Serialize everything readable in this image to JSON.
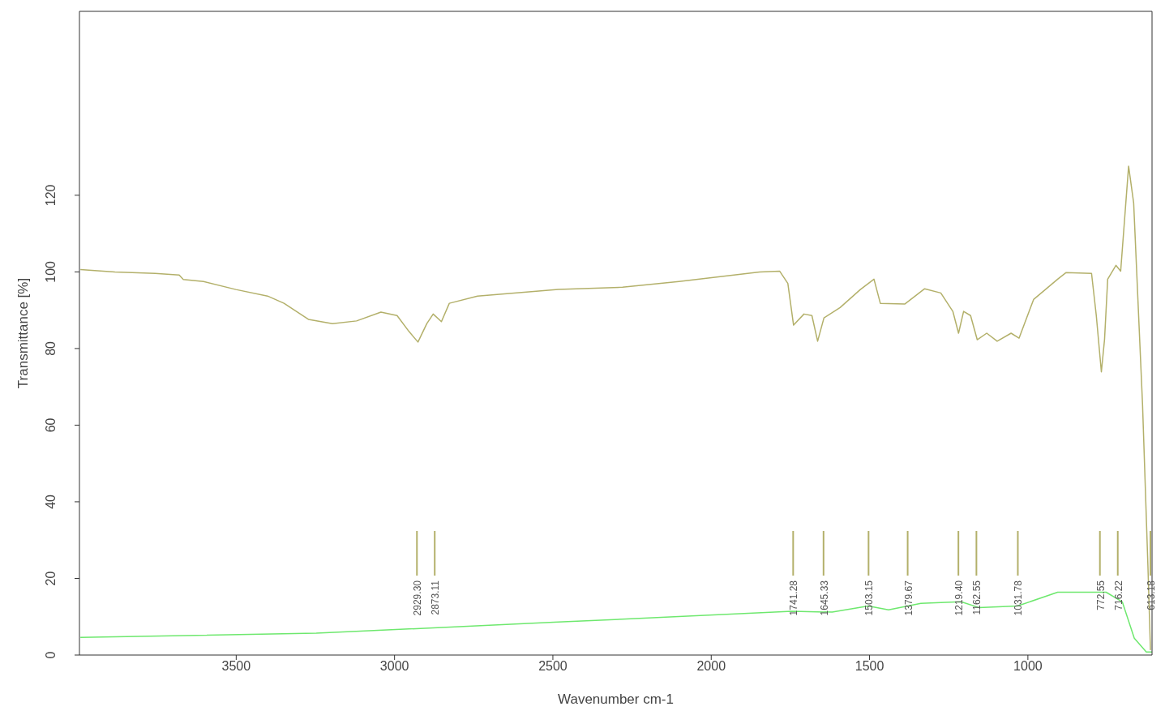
{
  "chart_data": {
    "type": "line",
    "xlabel": "Wavenumber cm-1",
    "ylabel": "Transmittance [%]",
    "xlim": [
      3995,
      608
    ],
    "xticks": [
      3500,
      3000,
      2500,
      2000,
      1500,
      1000
    ],
    "ylim": [
      0,
      168
    ],
    "yticks": [
      0,
      20,
      40,
      60,
      80,
      100,
      120
    ],
    "grid": false,
    "marker": "none",
    "line_style": "solid",
    "series": [
      {
        "color": "#b3b06a",
        "x": [
          3992,
          3883,
          3756,
          3680,
          3667,
          3603,
          3501,
          3401,
          3349,
          3272,
          3196,
          3120,
          3043,
          2992,
          2954,
          2926,
          2898,
          2878,
          2852,
          2827,
          2738,
          2483,
          2280,
          2102,
          1847,
          1784,
          1758,
          1740,
          1707,
          1682,
          1664,
          1644,
          1593,
          1529,
          1486,
          1466,
          1389,
          1326,
          1275,
          1237,
          1219,
          1203,
          1181,
          1160,
          1130,
          1097,
          1053,
          1028,
          982,
          906,
          880,
          799,
          784,
          768,
          758,
          748,
          722,
          707,
          682,
          666,
          638,
          621,
          613
        ],
        "values": [
          100.6,
          100,
          99.6,
          99.2,
          98,
          97.5,
          95.4,
          93.7,
          91.8,
          87.6,
          86.5,
          87.2,
          89.5,
          88.6,
          84.4,
          81.7,
          86.5,
          89,
          87,
          91.8,
          93.7,
          95.4,
          96,
          97.5,
          100,
          100.2,
          97,
          86.1,
          89,
          88.6,
          81.9,
          88,
          90.7,
          95.4,
          98.1,
          91.8,
          91.6,
          95.6,
          94.5,
          89.7,
          84,
          89.7,
          88.6,
          82.3,
          84,
          81.9,
          84,
          82.7,
          92.8,
          98.1,
          99.8,
          99.6,
          88.6,
          73.9,
          82.3,
          98.1,
          101.7,
          100.2,
          127.6,
          118,
          65.5,
          23.4,
          1.3
        ]
      },
      {
        "color": "#6ee86e",
        "x": [
          3992,
          3247,
          2483,
          1745,
          1618,
          1504,
          1440,
          1338,
          1211,
          1155,
          1033,
          906,
          753,
          702,
          664,
          626,
          608
        ],
        "values": [
          4.6,
          5.7,
          8.6,
          11.4,
          11.2,
          12.8,
          11.8,
          13.5,
          13.9,
          12.4,
          12.8,
          16.4,
          16.4,
          13.9,
          4.4,
          0.8,
          0.8
        ]
      }
    ],
    "ref_lines": [
      {
        "axis": "x",
        "value": 2929.3,
        "label": "2929.30"
      },
      {
        "axis": "x",
        "value": 2873.11,
        "label": "2873.11"
      },
      {
        "axis": "x",
        "value": 1741.28,
        "label": "1741.28"
      },
      {
        "axis": "x",
        "value": 1645.33,
        "label": "1645.33"
      },
      {
        "axis": "x",
        "value": 1503.15,
        "label": "1503.15"
      },
      {
        "axis": "x",
        "value": 1379.67,
        "label": "1379.67"
      },
      {
        "axis": "x",
        "value": 1219.4,
        "label": "1219.40"
      },
      {
        "axis": "x",
        "value": 1162.55,
        "label": "1162.55"
      },
      {
        "axis": "x",
        "value": 1031.78,
        "label": "1031.78"
      },
      {
        "axis": "x",
        "value": 772.55,
        "label": "772.55"
      },
      {
        "axis": "x",
        "value": 716.22,
        "label": "716.22"
      },
      {
        "axis": "x",
        "value": 613.18,
        "label": "613.18"
      }
    ]
  }
}
